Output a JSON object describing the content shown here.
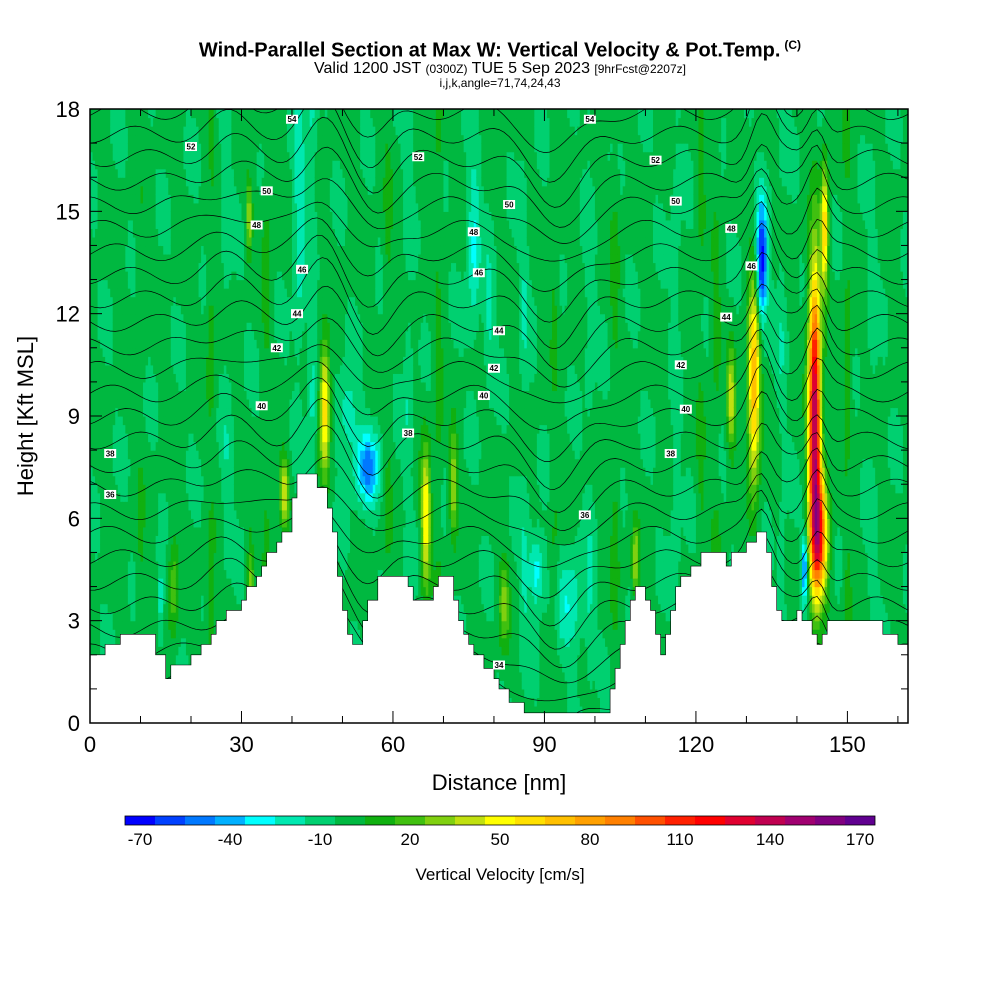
{
  "title": {
    "main": "Wind-Parallel Section at Max W: Vertical Velocity & Pot.Temp.",
    "copyright": "(C)",
    "valid_prefix": "Valid 1200 JST",
    "valid_utc": "(0300Z)",
    "valid_date": "TUE 5 Sep 2023",
    "forecast": "[9hrFcst@2207z]",
    "indices": "i,j,k,angle=71,74,24,43"
  },
  "chart_data": {
    "type": "heatmap",
    "xlabel": "Distance [nm]",
    "ylabel": "Height [Kft MSL]",
    "xlim": [
      0,
      162
    ],
    "ylim": [
      0,
      18
    ],
    "x_ticks": [
      0,
      30,
      60,
      90,
      120,
      150
    ],
    "y_ticks": [
      0,
      3,
      6,
      9,
      12,
      15,
      18
    ],
    "colorbar": {
      "label": "Vertical Velocity [cm/s]",
      "min": -70,
      "step": 10,
      "tick_labels": [
        "-70",
        "-40",
        "-10",
        "20",
        "50",
        "80",
        "110",
        "140",
        "170"
      ],
      "tick_values": [
        -70,
        -40,
        -10,
        20,
        50,
        80,
        110,
        140,
        170
      ],
      "colors": [
        "#0000ff",
        "#0040ff",
        "#0078ff",
        "#00b0ff",
        "#00ffff",
        "#00e8b0",
        "#00d070",
        "#00b840",
        "#10b010",
        "#40c010",
        "#80d010",
        "#c0e010",
        "#ffff00",
        "#ffe000",
        "#ffc000",
        "#ffa000",
        "#ff8000",
        "#ff5000",
        "#ff2000",
        "#ff0000",
        "#e00030",
        "#c00050",
        "#a00070",
        "#800080",
        "#600090"
      ]
    },
    "terrain_kft": [
      [
        0,
        2.0
      ],
      [
        3,
        2.0
      ],
      [
        3,
        2.3
      ],
      [
        6,
        2.3
      ],
      [
        6,
        2.6
      ],
      [
        13,
        2.6
      ],
      [
        13,
        2.0
      ],
      [
        15,
        2.0
      ],
      [
        15,
        1.3
      ],
      [
        16,
        1.3
      ],
      [
        16,
        1.7
      ],
      [
        20,
        1.7
      ],
      [
        20,
        2.0
      ],
      [
        22,
        2.0
      ],
      [
        22,
        2.3
      ],
      [
        24,
        2.3
      ],
      [
        24,
        2.6
      ],
      [
        25,
        2.6
      ],
      [
        25,
        3.0
      ],
      [
        27,
        3.0
      ],
      [
        27,
        3.3
      ],
      [
        30,
        3.3
      ],
      [
        30,
        3.6
      ],
      [
        31,
        3.6
      ],
      [
        31,
        4.0
      ],
      [
        33,
        4.0
      ],
      [
        33,
        4.3
      ],
      [
        34,
        4.3
      ],
      [
        34,
        4.6
      ],
      [
        35,
        4.6
      ],
      [
        35,
        5.0
      ],
      [
        37,
        5.0
      ],
      [
        37,
        5.3
      ],
      [
        38,
        5.3
      ],
      [
        38,
        5.6
      ],
      [
        40,
        5.6
      ],
      [
        40,
        6.6
      ],
      [
        41,
        6.6
      ],
      [
        41,
        7.3
      ],
      [
        45,
        7.3
      ],
      [
        45,
        6.9
      ],
      [
        47,
        6.9
      ],
      [
        47,
        6.3
      ],
      [
        48,
        6.3
      ],
      [
        48,
        5.6
      ],
      [
        49,
        5.6
      ],
      [
        49,
        4.3
      ],
      [
        50,
        4.3
      ],
      [
        50,
        3.3
      ],
      [
        51,
        3.3
      ],
      [
        51,
        2.6
      ],
      [
        52,
        2.6
      ],
      [
        52,
        2.3
      ],
      [
        54,
        2.3
      ],
      [
        54,
        3.0
      ],
      [
        55,
        3.0
      ],
      [
        55,
        3.6
      ],
      [
        57,
        3.6
      ],
      [
        57,
        4.3
      ],
      [
        63,
        4.3
      ],
      [
        63,
        4.0
      ],
      [
        64,
        4.0
      ],
      [
        64,
        3.6
      ],
      [
        68,
        3.6
      ],
      [
        68,
        4.0
      ],
      [
        69,
        4.0
      ],
      [
        69,
        4.3
      ],
      [
        72,
        4.3
      ],
      [
        72,
        3.6
      ],
      [
        73,
        3.6
      ],
      [
        73,
        3.0
      ],
      [
        74,
        3.0
      ],
      [
        74,
        2.6
      ],
      [
        75,
        2.6
      ],
      [
        75,
        2.3
      ],
      [
        76,
        2.3
      ],
      [
        76,
        2.0
      ],
      [
        78,
        2.0
      ],
      [
        78,
        1.6
      ],
      [
        80,
        1.6
      ],
      [
        80,
        1.3
      ],
      [
        81,
        1.3
      ],
      [
        81,
        1.0
      ],
      [
        83,
        1.0
      ],
      [
        83,
        0.6
      ],
      [
        86,
        0.6
      ],
      [
        86,
        0.3
      ],
      [
        100,
        0.3
      ],
      [
        100,
        0.3
      ],
      [
        103,
        0.3
      ],
      [
        103,
        1.0
      ],
      [
        104,
        1.0
      ],
      [
        104,
        1.6
      ],
      [
        105,
        1.6
      ],
      [
        105,
        2.3
      ],
      [
        106,
        2.3
      ],
      [
        106,
        3.0
      ],
      [
        107,
        3.0
      ],
      [
        107,
        3.6
      ],
      [
        108,
        3.6
      ],
      [
        108,
        4.0
      ],
      [
        110,
        4.0
      ],
      [
        110,
        3.6
      ],
      [
        111,
        3.6
      ],
      [
        111,
        3.3
      ],
      [
        112,
        3.3
      ],
      [
        112,
        2.6
      ],
      [
        113,
        2.6
      ],
      [
        113,
        2.0
      ],
      [
        114,
        2.0
      ],
      [
        114,
        2.6
      ],
      [
        115,
        2.6
      ],
      [
        115,
        3.3
      ],
      [
        116,
        3.3
      ],
      [
        116,
        4.0
      ],
      [
        117,
        4.0
      ],
      [
        117,
        4.3
      ],
      [
        119,
        4.3
      ],
      [
        119,
        4.6
      ],
      [
        121,
        4.6
      ],
      [
        121,
        5.0
      ],
      [
        126,
        5.0
      ],
      [
        126,
        4.6
      ],
      [
        127,
        4.6
      ],
      [
        127,
        5.0
      ],
      [
        130,
        5.0
      ],
      [
        130,
        5.3
      ],
      [
        132,
        5.3
      ],
      [
        132,
        5.6
      ],
      [
        134,
        5.6
      ],
      [
        134,
        5.0
      ],
      [
        135,
        5.0
      ],
      [
        135,
        4.0
      ],
      [
        136,
        4.0
      ],
      [
        136,
        3.3
      ],
      [
        137,
        3.3
      ],
      [
        137,
        3.0
      ],
      [
        140,
        3.0
      ],
      [
        140,
        3.3
      ],
      [
        141,
        3.3
      ],
      [
        141,
        3.0
      ],
      [
        143,
        3.0
      ],
      [
        143,
        2.6
      ],
      [
        144,
        2.6
      ],
      [
        144,
        2.3
      ],
      [
        145,
        2.3
      ],
      [
        145,
        2.6
      ],
      [
        146,
        2.6
      ],
      [
        146,
        3.0
      ],
      [
        157,
        3.0
      ],
      [
        157,
        2.6
      ],
      [
        160,
        2.6
      ],
      [
        160,
        2.3
      ],
      [
        162,
        2.3
      ]
    ],
    "w_features": [
      {
        "x": 46.5,
        "zc": 9.2,
        "wx": 1.0,
        "wz": 1.8,
        "w": 70
      },
      {
        "x": 38.5,
        "zc": 6.8,
        "wx": 0.9,
        "wz": 1.0,
        "w": 50
      },
      {
        "x": 31.5,
        "zc": 14.8,
        "wx": 0.6,
        "wz": 1.0,
        "w": 40
      },
      {
        "x": 31.8,
        "zc": 4.2,
        "wx": 0.6,
        "wz": 1.2,
        "w": 30
      },
      {
        "x": 16.5,
        "zc": 4.0,
        "wx": 1.0,
        "wz": 1.5,
        "w": 25
      },
      {
        "x": 66.5,
        "zc": 6.0,
        "wx": 0.9,
        "wz": 2.0,
        "w": 60
      },
      {
        "x": 72.0,
        "zc": 7.0,
        "wx": 0.8,
        "wz": 1.5,
        "w": 40
      },
      {
        "x": 82.0,
        "zc": 3.5,
        "wx": 1.0,
        "wz": 1.3,
        "w": 30
      },
      {
        "x": 108.0,
        "zc": 4.8,
        "wx": 0.7,
        "wz": 1.0,
        "w": 40
      },
      {
        "x": 127.0,
        "zc": 9.5,
        "wx": 0.8,
        "wz": 1.5,
        "w": 45
      },
      {
        "x": 131.5,
        "zc": 10.0,
        "wx": 1.2,
        "wz": 3.0,
        "w": 80
      },
      {
        "x": 143.5,
        "zc": 9.0,
        "wx": 1.2,
        "wz": 4.2,
        "w": 150
      },
      {
        "x": 144.5,
        "zc": 5.5,
        "wx": 1.6,
        "wz": 1.8,
        "w": 100
      },
      {
        "x": 145.5,
        "zc": 14.5,
        "wx": 0.7,
        "wz": 1.8,
        "w": 70
      },
      {
        "x": 55.0,
        "zc": 7.5,
        "wx": 2.5,
        "wz": 1.0,
        "w": -45
      },
      {
        "x": 51.0,
        "zc": 9.0,
        "wx": 2.0,
        "wz": 1.2,
        "w": -20
      },
      {
        "x": 88.5,
        "zc": 4.5,
        "wx": 1.5,
        "wz": 1.0,
        "w": -30
      },
      {
        "x": 95.0,
        "zc": 3.5,
        "wx": 3.0,
        "wz": 1.5,
        "w": -20
      },
      {
        "x": 133.0,
        "zc": 13.5,
        "wx": 1.1,
        "wz": 1.8,
        "w": -70
      },
      {
        "x": 141.5,
        "zc": 4.5,
        "wx": 0.6,
        "wz": 1.0,
        "w": -50
      },
      {
        "x": 14.0,
        "zc": 3.5,
        "wx": 0.6,
        "wz": 1.2,
        "w": -20
      },
      {
        "x": 41.5,
        "zc": 15.0,
        "wx": 1.2,
        "wz": 4.0,
        "w": -20
      },
      {
        "x": 76.0,
        "zc": 14.0,
        "wx": 1.2,
        "wz": 2.5,
        "w": -25
      },
      {
        "x": 79.0,
        "zc": 12.0,
        "wx": 1.0,
        "wz": 2.0,
        "w": -15
      }
    ],
    "streaks": [
      {
        "x": 24,
        "w": 15
      },
      {
        "x": 27,
        "w": -10
      },
      {
        "x": 35,
        "w": 15
      },
      {
        "x": 44,
        "w": -15
      },
      {
        "x": 59,
        "w": 12
      },
      {
        "x": 63,
        "w": -12
      },
      {
        "x": 69,
        "w": 15
      },
      {
        "x": 86,
        "w": -12
      },
      {
        "x": 92,
        "w": 12
      },
      {
        "x": 99,
        "w": -10
      },
      {
        "x": 104,
        "w": 15
      },
      {
        "x": 116,
        "w": -10
      },
      {
        "x": 121,
        "w": 12
      },
      {
        "x": 124,
        "w": 15
      },
      {
        "x": 137,
        "w": -10
      },
      {
        "x": 150,
        "w": 15
      },
      {
        "x": 155,
        "w": -8
      },
      {
        "x": 10,
        "w": 10
      }
    ],
    "contour_labels": [
      {
        "x": 4,
        "y": 6.7,
        "text": "36"
      },
      {
        "x": 4,
        "y": 7.9,
        "text": "38"
      },
      {
        "x": 34,
        "y": 9.3,
        "text": "40"
      },
      {
        "x": 37,
        "y": 11.0,
        "text": "42"
      },
      {
        "x": 41,
        "y": 12.0,
        "text": "44"
      },
      {
        "x": 42,
        "y": 13.3,
        "text": "46"
      },
      {
        "x": 33,
        "y": 14.6,
        "text": "48"
      },
      {
        "x": 35,
        "y": 15.6,
        "text": "50"
      },
      {
        "x": 20,
        "y": 16.9,
        "text": "52"
      },
      {
        "x": 40,
        "y": 17.7,
        "text": "54"
      },
      {
        "x": 63,
        "y": 8.5,
        "text": "38"
      },
      {
        "x": 78,
        "y": 9.6,
        "text": "40"
      },
      {
        "x": 80,
        "y": 10.4,
        "text": "42"
      },
      {
        "x": 81,
        "y": 11.5,
        "text": "44"
      },
      {
        "x": 77,
        "y": 13.2,
        "text": "46"
      },
      {
        "x": 76,
        "y": 14.4,
        "text": "48"
      },
      {
        "x": 83,
        "y": 15.2,
        "text": "50"
      },
      {
        "x": 65,
        "y": 16.6,
        "text": "52"
      },
      {
        "x": 99,
        "y": 17.7,
        "text": "54"
      },
      {
        "x": 98,
        "y": 6.1,
        "text": "36"
      },
      {
        "x": 115,
        "y": 7.9,
        "text": "38"
      },
      {
        "x": 118,
        "y": 9.2,
        "text": "40"
      },
      {
        "x": 117,
        "y": 10.5,
        "text": "42"
      },
      {
        "x": 126,
        "y": 11.9,
        "text": "44"
      },
      {
        "x": 131,
        "y": 13.4,
        "text": "46"
      },
      {
        "x": 127,
        "y": 14.5,
        "text": "48"
      },
      {
        "x": 116,
        "y": 15.3,
        "text": "50"
      },
      {
        "x": 112,
        "y": 16.5,
        "text": "52"
      },
      {
        "x": 81,
        "y": 1.7,
        "text": "34"
      }
    ]
  }
}
